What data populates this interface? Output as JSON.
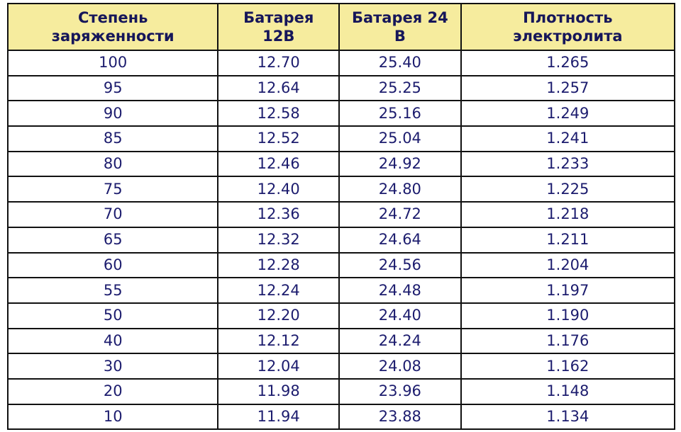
{
  "table": {
    "headers": [
      [
        "Степень",
        "заряженности"
      ],
      [
        "Батарея",
        "12В"
      ],
      [
        "Батарея 24",
        "В"
      ],
      [
        "Плотность",
        "электролита"
      ]
    ],
    "rows": [
      [
        "100",
        "12.70",
        "25.40",
        "1.265"
      ],
      [
        "95",
        "12.64",
        "25.25",
        "1.257"
      ],
      [
        "90",
        "12.58",
        "25.16",
        "1.249"
      ],
      [
        "85",
        "12.52",
        "25.04",
        "1.241"
      ],
      [
        "80",
        "12.46",
        "24.92",
        "1.233"
      ],
      [
        "75",
        "12.40",
        "24.80",
        "1.225"
      ],
      [
        "70",
        "12.36",
        "24.72",
        "1.218"
      ],
      [
        "65",
        "12.32",
        "24.64",
        "1.211"
      ],
      [
        "60",
        "12.28",
        "24.56",
        "1.204"
      ],
      [
        "55",
        "12.24",
        "24.48",
        "1.197"
      ],
      [
        "50",
        "12.20",
        "24.40",
        "1.190"
      ],
      [
        "40",
        "12.12",
        "24.24",
        "1.176"
      ],
      [
        "30",
        "12.04",
        "24.08",
        "1.162"
      ],
      [
        "20",
        "11.98",
        "23.96",
        "1.148"
      ],
      [
        "10",
        "11.94",
        "23.88",
        "1.134"
      ]
    ]
  },
  "colors": {
    "header_bg": "#f6ec9e",
    "text": "#1c1c6e",
    "border": "#111111"
  }
}
